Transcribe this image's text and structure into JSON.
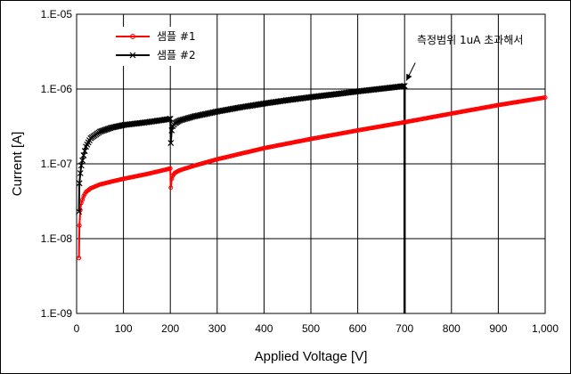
{
  "chart_data": {
    "type": "line",
    "title": "",
    "xlabel": "Applied Voltage [V]",
    "ylabel": "Current [A]",
    "xlim": [
      0,
      1000
    ],
    "ylim": [
      1e-09,
      1e-05
    ],
    "y_scale": "log",
    "grid": true,
    "legend_position": "top-left",
    "x_ticks": [
      0,
      100,
      200,
      300,
      400,
      500,
      600,
      700,
      800,
      900,
      1000
    ],
    "x_tick_labels": [
      "0",
      "100",
      "200",
      "300",
      "400",
      "500",
      "600",
      "700",
      "800",
      "900",
      "1,000"
    ],
    "y_ticks": [
      1e-09,
      1e-08,
      1e-07,
      1e-06,
      1e-05
    ],
    "y_tick_labels": [
      "1.E-09",
      "1.E-08",
      "1.E-07",
      "1.E-06",
      "1.E-05"
    ],
    "series": [
      {
        "name": "샘플 #1",
        "color": "#ff0000",
        "marker": "circle",
        "x": [
          5,
          6,
          8,
          10,
          15,
          20,
          30,
          50,
          75,
          100,
          150,
          195,
          200,
          201,
          203,
          205,
          210,
          220,
          250,
          300,
          400,
          500,
          600,
          700,
          800,
          900,
          1000
        ],
        "y": [
          5.5e-09,
          1.5e-08,
          2.4e-08,
          3e-08,
          3.7e-08,
          4.2e-08,
          4.7e-08,
          5.3e-08,
          5.8e-08,
          6.3e-08,
          7.3e-08,
          8.5e-08,
          8.7e-08,
          4.8e-08,
          6.3e-08,
          6.9e-08,
          7.6e-08,
          8.2e-08,
          9.4e-08,
          1.15e-07,
          1.62e-07,
          2.15e-07,
          2.8e-07,
          3.6e-07,
          4.7e-07,
          6.1e-07,
          7.7e-07
        ]
      },
      {
        "name": "샘플 #2",
        "color": "#000000",
        "marker": "x",
        "x": [
          5,
          6,
          8,
          10,
          15,
          20,
          30,
          50,
          75,
          100,
          150,
          195,
          200,
          201,
          203,
          205,
          210,
          220,
          250,
          300,
          350,
          400,
          450,
          500,
          550,
          600,
          650,
          690,
          700
        ],
        "y": [
          2.3e-08,
          5.5e-08,
          7.5e-08,
          9.5e-08,
          1.3e-07,
          1.7e-07,
          2.2e-07,
          2.7e-07,
          3.05e-07,
          3.3e-07,
          3.6e-07,
          3.95e-07,
          4e-07,
          1.9e-07,
          2.8e-07,
          3.2e-07,
          3.5e-07,
          3.8e-07,
          4.3e-07,
          5e-07,
          5.7e-07,
          6.4e-07,
          7.1e-07,
          7.8e-07,
          8.5e-07,
          9.3e-07,
          1.01e-06,
          1.08e-06,
          1.1e-06
        ]
      }
    ],
    "annotation": {
      "text": "측정범위 1uA 초과해서",
      "x": 700,
      "y": 1.1e-06
    },
    "vertical_drop": {
      "x": 700,
      "y_top": 1.1e-06,
      "y_bottom": 1e-09
    }
  }
}
